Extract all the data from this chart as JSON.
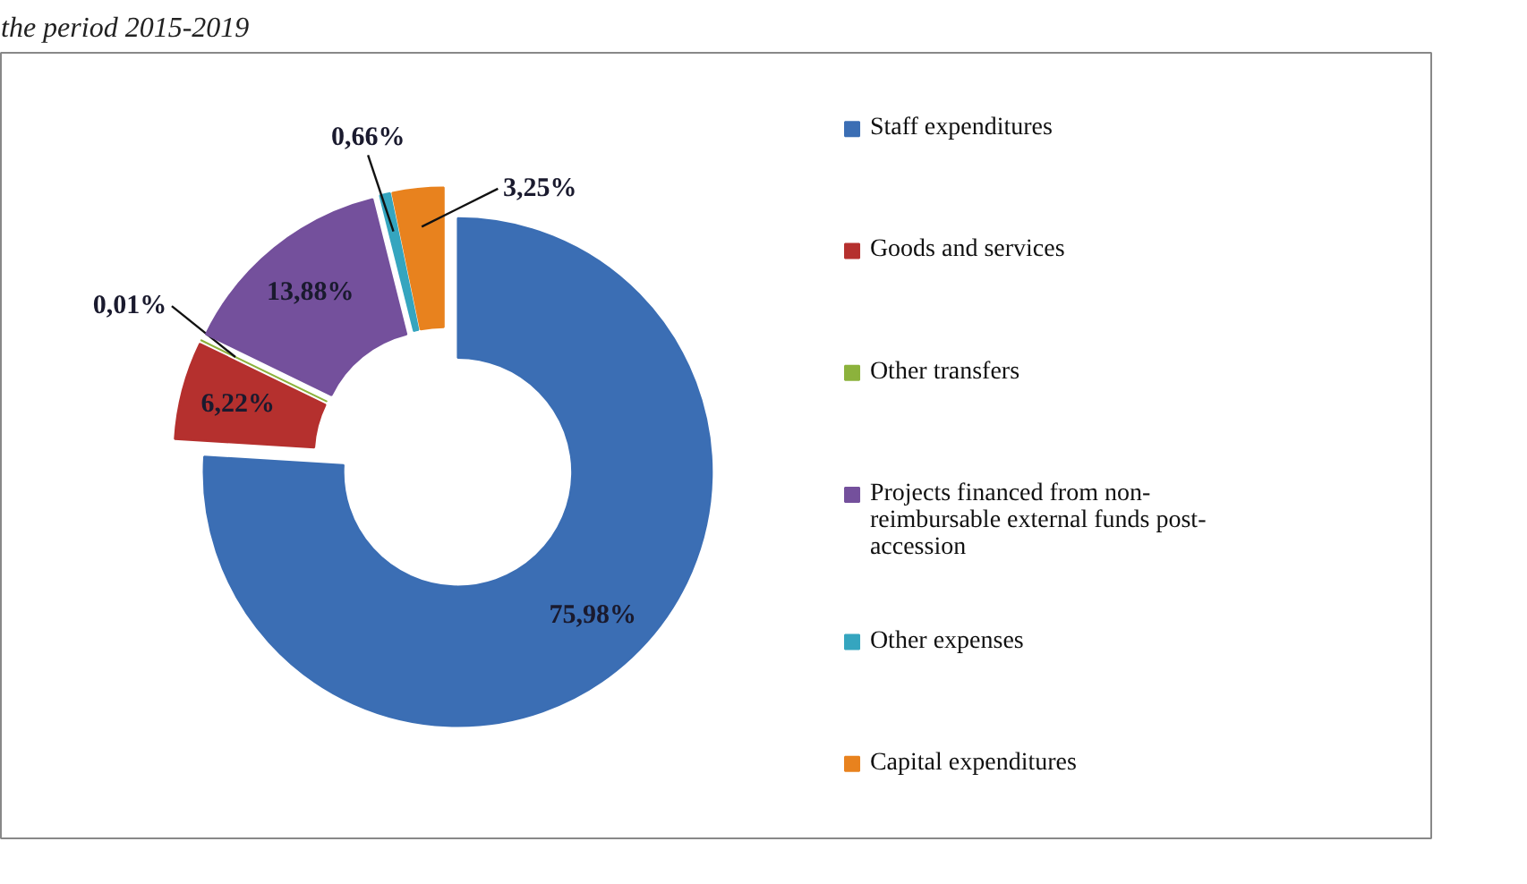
{
  "chart_data": {
    "type": "donut",
    "title": "the period 2015-2019",
    "categories": [
      "Staff expenditures",
      "Goods and services",
      "Other transfers",
      "Projects financed from non-reimbursable external funds post-accession",
      "Other expenses",
      "Capital expenditures"
    ],
    "values": [
      75.98,
      6.22,
      0.01,
      13.88,
      0.66,
      3.25
    ],
    "colors": [
      "#3b6eb4",
      "#b5302e",
      "#8cb23c",
      "#74509c",
      "#35a5bf",
      "#e8821e"
    ],
    "value_labels": [
      "75,98%",
      "6,22%",
      "0,01%",
      "13,88%",
      "0,66%",
      "3,25%"
    ],
    "legend": "right"
  }
}
